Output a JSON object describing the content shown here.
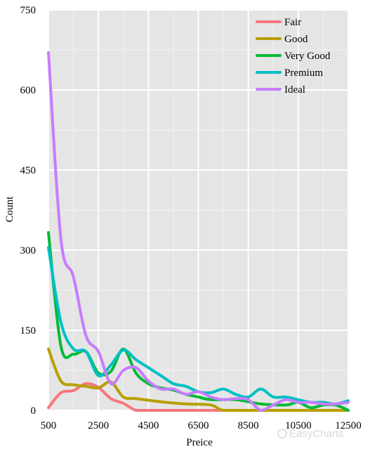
{
  "chart_data": {
    "type": "line",
    "xlabel": "Preice",
    "ylabel": "Count",
    "xlim": [
      500,
      12500
    ],
    "ylim": [
      0,
      750
    ],
    "x_ticks": [
      "500",
      "2500",
      "4500",
      "6500",
      "8500",
      "10500",
      "12500"
    ],
    "y_ticks": [
      "0",
      "150",
      "300",
      "450",
      "600",
      "750"
    ],
    "grid": true,
    "legend_position": "top-right",
    "watermark": "EasyCharts",
    "series": [
      {
        "name": "Fair",
        "color": "#f8767d",
        "x": [
          500,
          1000,
          1500,
          2000,
          2500,
          3000,
          3500,
          4000,
          4500,
          6000,
          8000,
          10000,
          12500
        ],
        "y": [
          5,
          33,
          37,
          50,
          43,
          22,
          13,
          0,
          0,
          0,
          0,
          0,
          0
        ]
      },
      {
        "name": "Good",
        "color": "#b79f00",
        "x": [
          500,
          1000,
          1500,
          2000,
          2500,
          3000,
          3500,
          4000,
          5000,
          6000,
          7000,
          7500,
          8500,
          10000,
          12500
        ],
        "y": [
          115,
          55,
          48,
          45,
          42,
          53,
          25,
          22,
          16,
          12,
          10,
          0,
          0,
          0,
          0
        ]
      },
      {
        "name": "Very Good",
        "color": "#00ba38",
        "x": [
          500,
          1000,
          1500,
          2000,
          2500,
          3000,
          3500,
          4000,
          4500,
          5000,
          5500,
          6000,
          6500,
          7000,
          8000,
          9000,
          10000,
          10500,
          11000,
          11500,
          12000,
          12500
        ],
        "y": [
          333,
          120,
          105,
          110,
          70,
          73,
          115,
          70,
          50,
          42,
          38,
          30,
          25,
          20,
          20,
          12,
          10,
          15,
          5,
          10,
          10,
          0
        ]
      },
      {
        "name": "Premium",
        "color": "#00bfc4",
        "x": [
          500,
          1000,
          1500,
          2000,
          2500,
          3000,
          3500,
          4000,
          4500,
          5000,
          5500,
          6000,
          6500,
          7000,
          7500,
          8000,
          8500,
          9000,
          9500,
          10000,
          10500,
          11000,
          11500,
          12000,
          12500
        ],
        "y": [
          305,
          165,
          115,
          110,
          65,
          85,
          113,
          95,
          80,
          65,
          50,
          45,
          35,
          33,
          40,
          30,
          25,
          40,
          25,
          25,
          20,
          15,
          15,
          12,
          18
        ]
      },
      {
        "name": "Ideal",
        "color": "#c77cff",
        "x": [
          500,
          1000,
          1500,
          2000,
          2500,
          3000,
          3500,
          4000,
          4500,
          5000,
          5500,
          6000,
          6500,
          7000,
          7500,
          8000,
          8500,
          9000,
          9500,
          10000,
          10500,
          11000,
          11500,
          12000,
          12500
        ],
        "y": [
          670,
          320,
          250,
          140,
          110,
          50,
          75,
          80,
          55,
          40,
          40,
          30,
          35,
          25,
          20,
          22,
          20,
          0,
          10,
          20,
          15,
          15,
          12,
          12,
          15
        ]
      }
    ]
  }
}
